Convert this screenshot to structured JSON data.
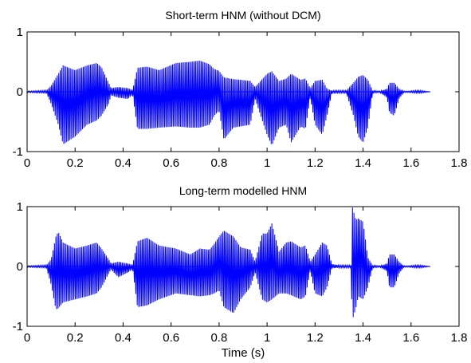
{
  "figure": {
    "xlabel": "Time (s)",
    "trace_color": "#0000ff",
    "axes_color": "#000000"
  },
  "chart_data": [
    {
      "type": "line",
      "title": "Short-term HNM (without DCM)",
      "xlabel": "",
      "ylabel": "",
      "xlim": [
        0,
        1.8
      ],
      "ylim": [
        -1,
        1
      ],
      "xticks": [
        "0",
        "0.2",
        "0.4",
        "0.6",
        "0.8",
        "1",
        "1.2",
        "1.4",
        "1.6",
        "1.8"
      ],
      "yticks": [
        "-1",
        "0",
        "1"
      ],
      "grid": false,
      "series": [
        {
          "style": "dense waveform envelope",
          "x": [
            0,
            0.08,
            0.1,
            0.13,
            0.15,
            0.2,
            0.25,
            0.29,
            0.31,
            0.34,
            0.35,
            0.38,
            0.42,
            0.44,
            0.46,
            0.5,
            0.55,
            0.62,
            0.68,
            0.72,
            0.76,
            0.78,
            0.8,
            0.82,
            0.86,
            0.89,
            0.93,
            0.95,
            1.0,
            1.02,
            1.05,
            1.08,
            1.1,
            1.14,
            1.16,
            1.18,
            1.2,
            1.23,
            1.25,
            1.27,
            1.3,
            1.33,
            1.36,
            1.38,
            1.4,
            1.42,
            1.44,
            1.47,
            1.5,
            1.51,
            1.53,
            1.55,
            1.57,
            1.59,
            1.62,
            1.64,
            1.68
          ],
          "upper": [
            0.01,
            0.02,
            0.1,
            0.3,
            0.44,
            0.36,
            0.44,
            0.48,
            0.41,
            0.15,
            0.06,
            0.08,
            0.06,
            0.03,
            0.4,
            0.42,
            0.36,
            0.48,
            0.5,
            0.52,
            0.46,
            0.38,
            0.35,
            0.24,
            0.21,
            0.2,
            0.18,
            0.08,
            0.3,
            0.34,
            0.18,
            0.22,
            0.3,
            0.2,
            0.22,
            0.06,
            0.18,
            0.2,
            0.05,
            0.02,
            0.02,
            0.02,
            0.15,
            0.25,
            0.28,
            0.2,
            0.02,
            0.01,
            0.05,
            0.15,
            0.15,
            0.05,
            0.01,
            0.01,
            0.02,
            0.02,
            0.0
          ],
          "lower": [
            -0.01,
            -0.02,
            -0.2,
            -0.55,
            -0.88,
            -0.75,
            -0.55,
            -0.48,
            -0.4,
            -0.2,
            -0.06,
            -0.1,
            -0.12,
            -0.05,
            -0.62,
            -0.62,
            -0.6,
            -0.58,
            -0.6,
            -0.6,
            -0.55,
            -0.4,
            -0.32,
            -0.8,
            -0.6,
            -0.58,
            -0.55,
            -0.12,
            -0.72,
            -0.9,
            -0.6,
            -0.55,
            -0.85,
            -0.58,
            -0.62,
            -0.1,
            -0.55,
            -0.72,
            -0.4,
            -0.02,
            -0.02,
            -0.02,
            -0.4,
            -0.75,
            -0.85,
            -0.6,
            -0.02,
            -0.01,
            -0.1,
            -0.35,
            -0.4,
            -0.12,
            -0.01,
            -0.01,
            -0.02,
            -0.02,
            0.0
          ]
        }
      ]
    },
    {
      "type": "line",
      "title": "Long-term modelled HNM",
      "xlabel": "Time (s)",
      "ylabel": "",
      "xlim": [
        0,
        1.8
      ],
      "ylim": [
        -1,
        1
      ],
      "xticks": [
        "0",
        "0.2",
        "0.4",
        "0.6",
        "0.8",
        "1",
        "1.2",
        "1.4",
        "1.6",
        "1.8"
      ],
      "yticks": [
        "-1",
        "0",
        "1"
      ],
      "grid": false,
      "series": [
        {
          "style": "dense waveform envelope",
          "x": [
            0,
            0.08,
            0.1,
            0.12,
            0.13,
            0.15,
            0.2,
            0.25,
            0.29,
            0.31,
            0.34,
            0.35,
            0.38,
            0.42,
            0.44,
            0.46,
            0.5,
            0.55,
            0.62,
            0.68,
            0.72,
            0.76,
            0.78,
            0.8,
            0.82,
            0.86,
            0.89,
            0.93,
            0.95,
            0.98,
            1.0,
            1.02,
            1.05,
            1.08,
            1.1,
            1.14,
            1.16,
            1.18,
            1.2,
            1.23,
            1.25,
            1.27,
            1.3,
            1.33,
            1.35,
            1.355,
            1.37,
            1.38,
            1.4,
            1.42,
            1.44,
            1.47,
            1.5,
            1.51,
            1.53,
            1.55,
            1.57,
            1.59,
            1.62,
            1.64,
            1.68
          ],
          "upper": [
            0.01,
            0.02,
            0.12,
            0.5,
            0.58,
            0.4,
            0.3,
            0.35,
            0.4,
            0.3,
            0.12,
            0.05,
            0.08,
            0.05,
            0.03,
            0.42,
            0.48,
            0.35,
            0.3,
            0.2,
            0.3,
            0.28,
            0.38,
            0.5,
            0.6,
            0.5,
            0.32,
            0.28,
            0.08,
            0.55,
            0.55,
            0.72,
            0.25,
            0.4,
            0.42,
            0.32,
            0.35,
            0.08,
            0.2,
            0.4,
            0.35,
            0.04,
            0.02,
            0.02,
            0.02,
            1.0,
            0.78,
            0.8,
            0.75,
            0.15,
            0.02,
            0.01,
            0.05,
            0.2,
            0.2,
            0.08,
            0.01,
            0.01,
            0.02,
            0.02,
            0.0
          ],
          "lower": [
            -0.01,
            -0.02,
            -0.3,
            -0.72,
            -0.7,
            -0.6,
            -0.55,
            -0.5,
            -0.45,
            -0.35,
            -0.12,
            -0.05,
            -0.18,
            -0.1,
            -0.05,
            -0.68,
            -0.65,
            -0.55,
            -0.45,
            -0.48,
            -0.5,
            -0.48,
            -0.45,
            -0.4,
            -0.68,
            -0.78,
            -0.55,
            -0.35,
            -0.1,
            -0.55,
            -0.6,
            -0.55,
            -0.45,
            -0.45,
            -0.48,
            -0.55,
            -0.5,
            -0.08,
            -0.45,
            -0.5,
            -0.35,
            -0.03,
            -0.02,
            -0.02,
            -0.02,
            -0.9,
            -0.7,
            -0.5,
            -0.55,
            -0.35,
            -0.02,
            -0.01,
            -0.08,
            -0.35,
            -0.35,
            -0.12,
            -0.01,
            -0.01,
            -0.02,
            -0.02,
            0.0
          ]
        }
      ]
    }
  ]
}
